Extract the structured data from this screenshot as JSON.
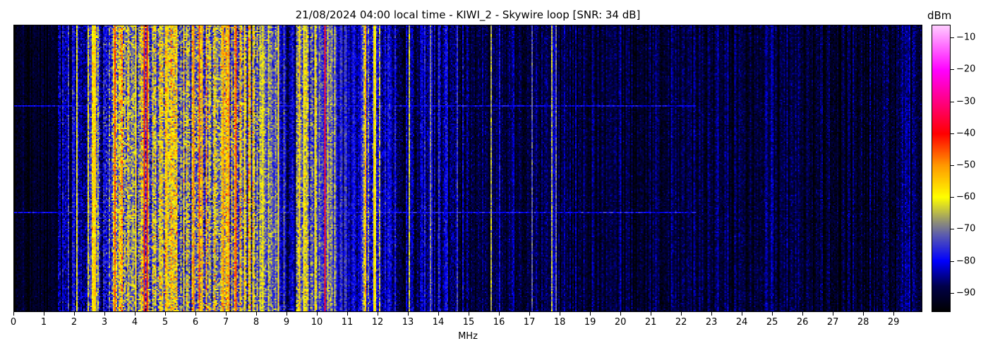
{
  "chart_data": {
    "type": "heatmap",
    "title": "21/08/2024 04:00 local time - KIWI_2 - Skywire loop [SNR: 34 dB]",
    "xlabel": "MHz",
    "ylabel": "",
    "xlim": [
      0,
      29.95
    ],
    "x_ticks": [
      0,
      1,
      2,
      3,
      4,
      5,
      6,
      7,
      8,
      9,
      10,
      11,
      12,
      13,
      14,
      15,
      16,
      17,
      18,
      19,
      20,
      21,
      22,
      23,
      24,
      25,
      26,
      27,
      28,
      29
    ],
    "y_ticks": [],
    "colorbar": {
      "label": "dBm",
      "range": [
        -96,
        -6
      ],
      "ticks": [
        -10,
        -20,
        -30,
        -40,
        -50,
        -60,
        -70,
        -80,
        -90
      ],
      "colormap": [
        {
          "value": -96,
          "color": "#000000"
        },
        {
          "value": -88,
          "color": "#00004a"
        },
        {
          "value": -80,
          "color": "#0000ff"
        },
        {
          "value": -72,
          "color": "#5a5ab0"
        },
        {
          "value": -68,
          "color": "#8c8c7a"
        },
        {
          "value": -60,
          "color": "#ffff00"
        },
        {
          "value": -50,
          "color": "#ff9900"
        },
        {
          "value": -40,
          "color": "#ff0000"
        },
        {
          "value": -30,
          "color": "#ff0080"
        },
        {
          "value": -20,
          "color": "#ff00ff"
        },
        {
          "value": -6,
          "color": "#ffccff"
        }
      ]
    },
    "band_levels_dbm": [
      {
        "from": 0,
        "to": 1.45,
        "level": -93,
        "spread": 3
      },
      {
        "from": 1.45,
        "to": 2.4,
        "level": -85,
        "spread": 6
      },
      {
        "from": 2.4,
        "to": 2.8,
        "level": -64,
        "spread": 8
      },
      {
        "from": 2.8,
        "to": 3.2,
        "level": -79,
        "spread": 8
      },
      {
        "from": 3.2,
        "to": 8.1,
        "level": -67,
        "spread": 11
      },
      {
        "from": 8.1,
        "to": 8.75,
        "level": -75,
        "spread": 8
      },
      {
        "from": 8.75,
        "to": 9.3,
        "level": -85,
        "spread": 6
      },
      {
        "from": 9.3,
        "to": 10.0,
        "level": -70,
        "spread": 9
      },
      {
        "from": 10.0,
        "to": 10.6,
        "level": -73,
        "spread": 7
      },
      {
        "from": 10.6,
        "to": 11.5,
        "level": -80,
        "spread": 5
      },
      {
        "from": 11.5,
        "to": 12.1,
        "level": -75,
        "spread": 8
      },
      {
        "from": 12.1,
        "to": 15.0,
        "level": -86,
        "spread": 5
      },
      {
        "from": 15.0,
        "to": 18.0,
        "level": -88,
        "spread": 4
      },
      {
        "from": 18.0,
        "to": 29.95,
        "level": -90,
        "spread": 4
      }
    ],
    "carriers": [
      {
        "mhz": 2.05,
        "dbm": -62
      },
      {
        "mhz": 2.6,
        "dbm": -58
      },
      {
        "mhz": 2.66,
        "dbm": -55
      },
      {
        "mhz": 3.3,
        "dbm": -46
      },
      {
        "mhz": 4.0,
        "dbm": -58
      },
      {
        "mhz": 4.3,
        "dbm": -42
      },
      {
        "mhz": 4.35,
        "dbm": -41
      },
      {
        "mhz": 5.0,
        "dbm": -55
      },
      {
        "mhz": 5.9,
        "dbm": -50
      },
      {
        "mhz": 6.1,
        "dbm": -45
      },
      {
        "mhz": 6.2,
        "dbm": -52
      },
      {
        "mhz": 6.9,
        "dbm": -50
      },
      {
        "mhz": 7.05,
        "dbm": -50
      },
      {
        "mhz": 7.3,
        "dbm": -45
      },
      {
        "mhz": 7.6,
        "dbm": -58
      },
      {
        "mhz": 8.2,
        "dbm": -60
      },
      {
        "mhz": 8.7,
        "dbm": -58
      },
      {
        "mhz": 9.4,
        "dbm": -57
      },
      {
        "mhz": 9.55,
        "dbm": -60
      },
      {
        "mhz": 9.9,
        "dbm": -58
      },
      {
        "mhz": 10.25,
        "dbm": -38
      },
      {
        "mhz": 11.6,
        "dbm": -52
      },
      {
        "mhz": 11.85,
        "dbm": -58
      },
      {
        "mhz": 11.9,
        "dbm": -60
      },
      {
        "mhz": 13.0,
        "dbm": -64
      },
      {
        "mhz": 13.7,
        "dbm": -70
      },
      {
        "mhz": 14.0,
        "dbm": -76
      },
      {
        "mhz": 14.6,
        "dbm": -76
      },
      {
        "mhz": 15.7,
        "dbm": -66
      },
      {
        "mhz": 16.0,
        "dbm": -80
      },
      {
        "mhz": 17.05,
        "dbm": -72
      },
      {
        "mhz": 17.7,
        "dbm": -66
      },
      {
        "mhz": 17.85,
        "dbm": -72
      }
    ],
    "horizontal_interference": [
      {
        "row_fraction": 0.28,
        "dbm": -80,
        "to_mhz": 22.5
      },
      {
        "row_fraction": 0.65,
        "dbm": -80,
        "to_mhz": 22.5
      }
    ]
  }
}
